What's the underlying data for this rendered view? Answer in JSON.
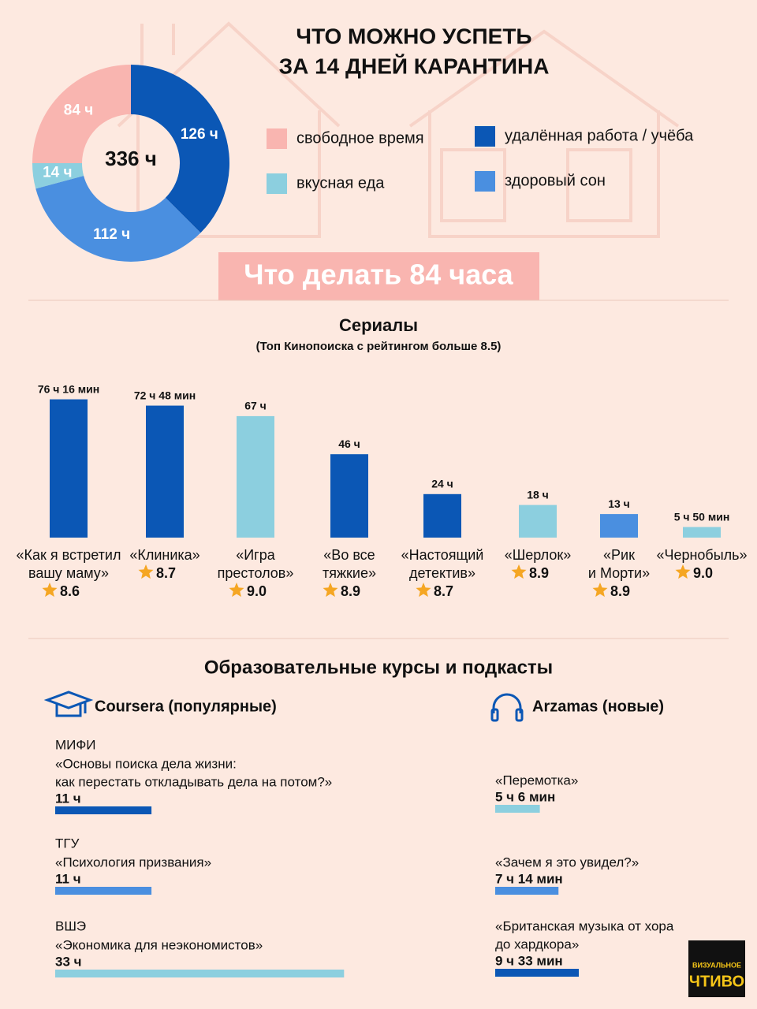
{
  "header": {
    "title_lines": [
      "ЧТО МОЖНО УСПЕТЬ",
      "ЗА 14 ДНЕЙ КАРАНТИНА"
    ]
  },
  "banner": "Что делать 84 часа",
  "courses_title": "Образовательные курсы и подкасты",
  "logo": [
    "ВИЗУАЛЬНОЕ",
    "ЧТИВО"
  ],
  "chart_data": [
    {
      "type": "donut",
      "center_label": "336 ч",
      "categories": [
        "удалённая работа / учёба",
        "здоровый сон",
        "вкусная еда",
        "свободное время"
      ],
      "values": [
        126,
        112,
        14,
        84
      ],
      "value_labels": [
        "126 ч",
        "112 ч",
        "14 ч",
        "84 ч"
      ],
      "colors": [
        "#0b57b5",
        "#4a8fe0",
        "#8ccfdf",
        "#f9b5b0"
      ]
    },
    {
      "type": "bar",
      "title": "Сериалы",
      "subtitle": "(Топ Кинопоиска с рейтингом больше 8.5)",
      "categories": [
        [
          "«Как я встретил",
          "вашу маму»"
        ],
        [
          "«Клиника»"
        ],
        [
          "«Игра",
          "престолов»"
        ],
        [
          "«Во все",
          "тяжкие»"
        ],
        [
          "«Настоящий",
          "детектив»"
        ],
        [
          "«Шерлок»"
        ],
        [
          "«Рик",
          "и Морти»"
        ],
        [
          "«Чернобыль»"
        ]
      ],
      "values": [
        76.27,
        72.8,
        67,
        46,
        24,
        18,
        13,
        5.83
      ],
      "value_labels": [
        "76 ч 16 мин",
        "72 ч 48 мин",
        "67 ч",
        "46 ч",
        "24 ч",
        "18 ч",
        "13 ч",
        "5 ч 50 мин"
      ],
      "ratings": [
        "8.6",
        "8.7",
        "9.0",
        "8.9",
        "8.7",
        "8.9",
        "8.9",
        "9.0"
      ],
      "colors": [
        "#0b57b5",
        "#0b57b5",
        "#8ccfdf",
        "#0b57b5",
        "#0b57b5",
        "#8ccfdf",
        "#4a8fe0",
        "#8ccfdf"
      ]
    },
    {
      "type": "hbar",
      "title": "Coursera (популярные)",
      "orgs": [
        "МИФИ",
        "ТГУ",
        "ВШЭ"
      ],
      "categories": [
        [
          "«Основы поиска дела жизни:",
          "как перестать откладывать дела на потом?»"
        ],
        [
          "«Психология призвания»"
        ],
        [
          "«Экономика для неэкономистов»"
        ]
      ],
      "values": [
        11,
        11,
        33
      ],
      "value_labels": [
        "11 ч",
        "11 ч",
        "33 ч"
      ],
      "colors": [
        "#0b57b5",
        "#4a8fe0",
        "#8ccfdf"
      ]
    },
    {
      "type": "hbar",
      "title": "Arzamas (новые)",
      "categories": [
        [
          "«Перемотка»"
        ],
        [
          "«Зачем я это увидел?»"
        ],
        [
          "«Британская музыка от хора",
          "до хардкора»"
        ]
      ],
      "values": [
        5.1,
        7.23,
        9.55
      ],
      "value_labels": [
        "5 ч 6 мин",
        "7 ч 14 мин",
        "9 ч 33 мин"
      ],
      "colors": [
        "#8ccfdf",
        "#4a8fe0",
        "#0b57b5"
      ]
    }
  ]
}
